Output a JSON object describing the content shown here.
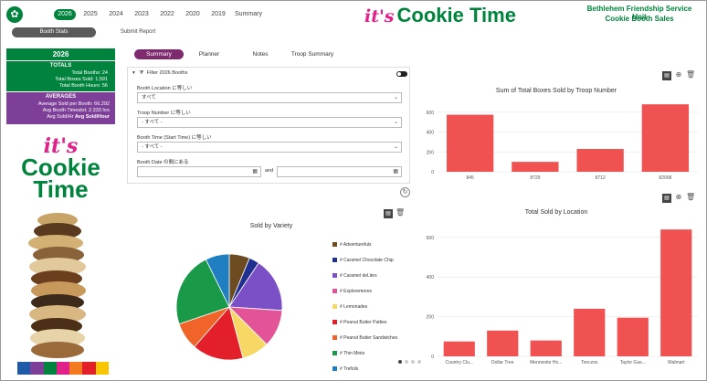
{
  "header": {
    "year_tabs": [
      "2026",
      "2025",
      "2024",
      "2023",
      "2022",
      "2020",
      "2019",
      "Summary"
    ],
    "active_year": "2026",
    "brand_its": "it's",
    "brand_name": "Cookie Time",
    "unit_name": "Bethlehem Friendship Service Unit",
    "unit_subtitle": "Cookie Booth Sales"
  },
  "nav": {
    "booth_stats": "Booth Stats",
    "submit_report": "Submit Report"
  },
  "stats": {
    "year": "2026",
    "totals_title": "TOTALS",
    "total_booths": "Total Booths: 24",
    "total_boxes": "Total Boxes Sold: 1,591",
    "total_hours": "Total Booth Hours: 56",
    "averages_title": "AVERAGES",
    "avg_sold_per_booth": "Average Sold per Booth: 66.292",
    "avg_timeslot": "Avg Booth Timeslot: 2.333 hrs",
    "avg_sold_hr_label": "Avg Sold/Hr",
    "avg_sold_hr_value": "Avg Sold/Hour"
  },
  "side_brand": {
    "its": "it's",
    "line1": "Cookie",
    "line2": "Time"
  },
  "main_tabs": [
    "Summary",
    "Planner",
    "Notes",
    "Troop Summary"
  ],
  "filter": {
    "title": "Filter 2026 Booths",
    "location_label": "Booth Location に等しい",
    "location_value": "すべて",
    "troop_label": "Troop Number に等しい",
    "troop_value": "- すべて -",
    "time_label": "Booth Time (Start Time) に等しい",
    "time_value": "- すべて -",
    "date_label": "Booth Date の間にある",
    "and_label": "and"
  },
  "colors": {
    "bar": "#f05252",
    "brand_green": "#00843d",
    "brand_purple": "#7d3f98",
    "brand_pink": "#e0218a"
  },
  "charts_titles": {
    "troop": "Sum of Total Boxes Sold by Troop Number",
    "location": "Total Sold by Location",
    "variety": "Sold by Variety"
  },
  "chart_data": [
    {
      "type": "bar",
      "title": "Sum of Total Boxes Sold by Troop Number",
      "categories": [
        "845",
        "8729",
        "8712",
        "82008"
      ],
      "values": [
        575,
        100,
        230,
        680
      ],
      "ylim": [
        0,
        700
      ],
      "yticks": [
        0,
        200,
        400,
        600
      ]
    },
    {
      "type": "bar",
      "title": "Total Sold by Location",
      "categories": [
        "Country Clu...",
        "Dollar Tree",
        "Mennonite Ho...",
        "Tonczos",
        "Taylor Gas...",
        "Walmart"
      ],
      "values": [
        75,
        130,
        80,
        240,
        195,
        640
      ],
      "ylim": [
        0,
        650
      ],
      "yticks": [
        0,
        200,
        400,
        600
      ]
    },
    {
      "type": "pie",
      "title": "Sold by Variety",
      "categories": [
        "Adventurefuls",
        "Caramel Chocolate Chip",
        "Caramel deLites",
        "Exploremores",
        "Lemonades",
        "Peanut Butter Patties",
        "Peanut Butter Sandwiches",
        "Thin Mints",
        "Trefoils"
      ],
      "values": [
        6,
        3,
        16,
        11,
        8,
        15,
        8,
        22,
        7
      ],
      "colors": [
        "#6b4b1f",
        "#1f2f8f",
        "#7b4fc6",
        "#e25497",
        "#f7d864",
        "#e3202a",
        "#f0642a",
        "#1a9a49",
        "#1f7fc1"
      ]
    }
  ],
  "pager_dots": 4
}
